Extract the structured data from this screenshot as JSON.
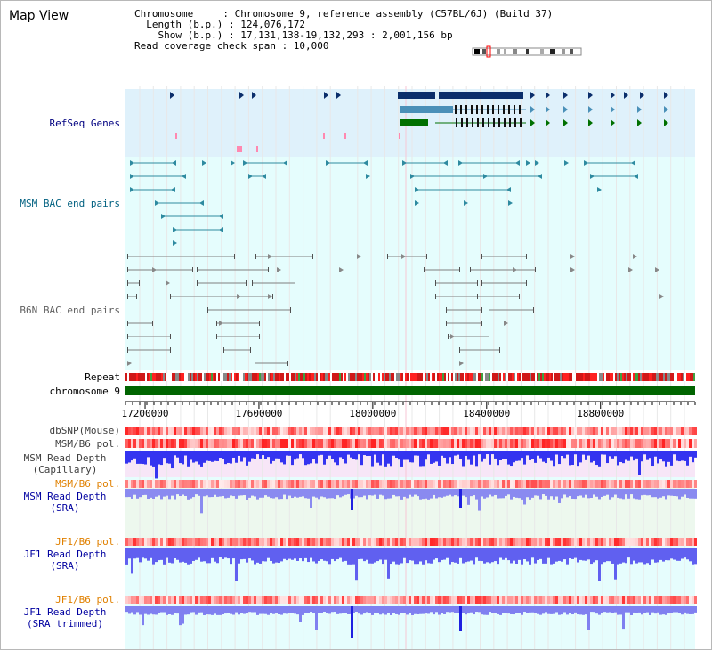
{
  "header": {
    "title": "Map View",
    "info_lines": [
      "Chromosome     : Chromosome 9, reference assembly (C57BL/6J) (Build 37)",
      "  Length (b.p.) : 124,076,172",
      "    Show (b.p.) : 17,131,138-19,132,293 : 2,001,156 bp",
      "Read coverage check span : 10,000"
    ]
  },
  "tracks": {
    "refseq": "RefSeq Genes",
    "msm_bac": "MSM BAC end pairs",
    "b6n_bac": "B6N BAC end pairs",
    "repeat": "Repeat",
    "chromosome": "chromosome 9",
    "dbsnp": "dbSNP(Mouse)",
    "msm_b6_pol_1": "MSM/B6 pol.",
    "msm_depth_cap": "MSM Read Depth\n(Capillary)",
    "msm_b6_pol_2": "MSM/B6 pol.",
    "msm_depth_sra": "MSM Read Depth\n(SRA)",
    "jf1_b6_pol_1": "JF1/B6 pol.",
    "jf1_depth_sra": "JF1 Read Depth\n(SRA)",
    "jf1_b6_pol_2": "JF1/B6 pol.",
    "jf1_depth_trim": "JF1 Read Depth\n(SRA trimmed)"
  },
  "axis": {
    "ticks": [
      "17200000",
      "17600000",
      "18000000",
      "18400000",
      "18800000"
    ],
    "tick_values": [
      17200000,
      17600000,
      18000000,
      18400000,
      18800000
    ],
    "range": [
      17131138,
      19132293
    ]
  },
  "colors": {
    "refseq_label": "#000080",
    "msm_bac_label": "#006080",
    "b6n_bac_label": "#606060",
    "gold_label": "#e08000",
    "navy_label": "#0000a0",
    "refseq_band": "#dff1fb",
    "bac_band": "#e5fdfd",
    "chromosome": "#006400",
    "gene_dark": "#0b2e6b",
    "gene_mid": "#4a90b8",
    "gene_green": "#007000",
    "bac_teal": "#2e8aa0",
    "bac_gray": "#707070",
    "depth_blue": "#3a3aff",
    "depth_light": "#8c8cff"
  }
}
